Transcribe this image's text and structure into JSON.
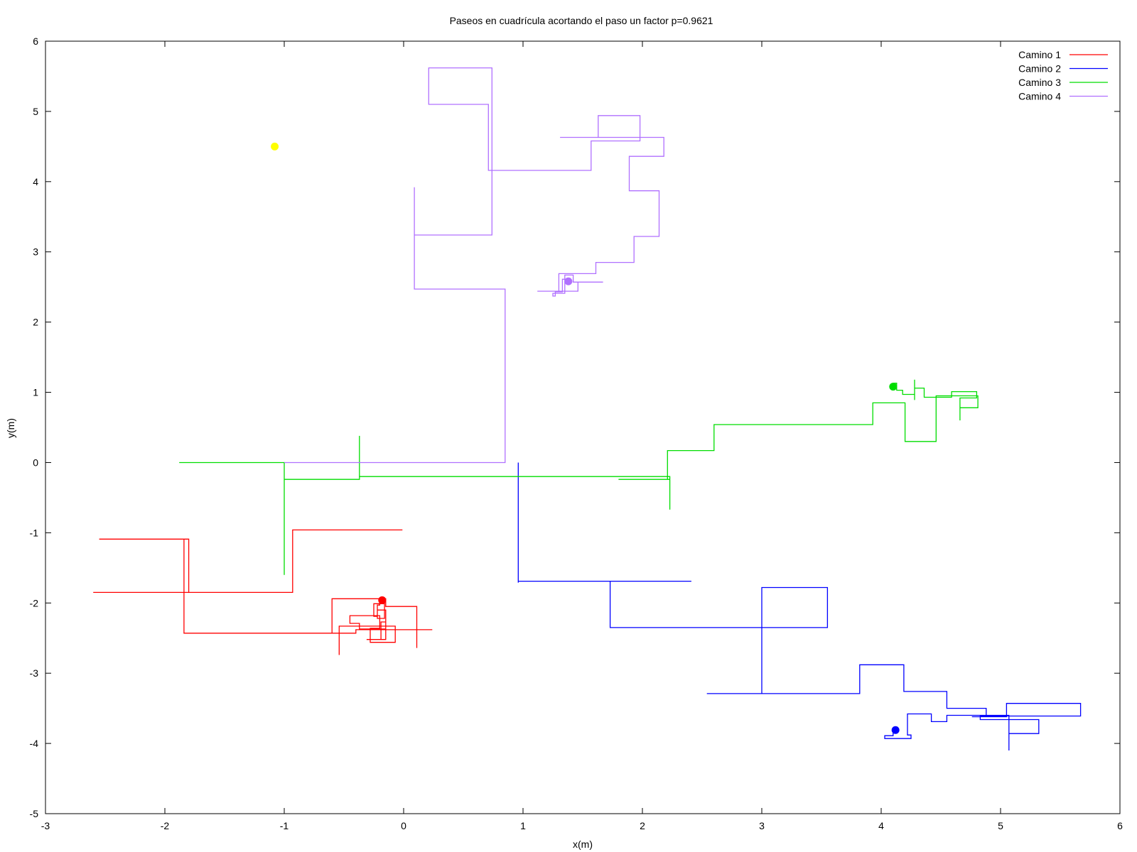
{
  "chart_data": {
    "type": "line",
    "title": "Paseos en cuadrícula acortando el paso un factor p=0.9621",
    "xlabel": "x(m)",
    "ylabel": "y(m)",
    "xlim": [
      -3,
      6
    ],
    "ylim": [
      -5,
      6
    ],
    "xticks": [
      "-3",
      "-2",
      "-1",
      "0",
      "1",
      "2",
      "3",
      "4",
      "5",
      "6"
    ],
    "yticks": [
      "-5",
      "-4",
      "-3",
      "-2",
      "-1",
      "0",
      "1",
      "2",
      "3",
      "4",
      "5",
      "6"
    ],
    "grid": false,
    "legend_position": "top-right",
    "series": [
      {
        "name": "Camino 1",
        "color": "#ff0000",
        "end_point": [
          -0.18,
          -1.96
        ],
        "points": [
          [
            -0.01,
            -0.96
          ],
          [
            -0.93,
            -0.96
          ],
          [
            -0.93,
            -1.85
          ],
          [
            -2.6,
            -1.85
          ],
          [
            -1.8,
            -1.85
          ],
          [
            -1.8,
            -1.09
          ],
          [
            -2.55,
            -1.09
          ],
          [
            -1.84,
            -1.09
          ],
          [
            -1.84,
            -2.43
          ],
          [
            -0.4,
            -2.43
          ],
          [
            -0.4,
            -2.38
          ],
          [
            0.24,
            -2.38
          ],
          [
            0.11,
            -2.38
          ],
          [
            0.11,
            -2.64
          ],
          [
            0.11,
            -2.05
          ],
          [
            -0.15,
            -2.05
          ],
          [
            -0.15,
            -1.94
          ],
          [
            -0.6,
            -1.94
          ],
          [
            -0.6,
            -2.43
          ],
          [
            -0.54,
            -2.43
          ],
          [
            -0.54,
            -2.74
          ],
          [
            -0.54,
            -2.33
          ],
          [
            -0.07,
            -2.33
          ],
          [
            -0.07,
            -2.56
          ],
          [
            -0.28,
            -2.56
          ],
          [
            -0.28,
            -2.36
          ],
          [
            -0.2,
            -2.36
          ],
          [
            -0.2,
            -2.18
          ],
          [
            -0.45,
            -2.18
          ],
          [
            -0.45,
            -2.29
          ],
          [
            -0.37,
            -2.29
          ],
          [
            -0.37,
            -2.37
          ],
          [
            -0.15,
            -2.37
          ],
          [
            -0.15,
            -2.27
          ],
          [
            -0.19,
            -2.27
          ],
          [
            -0.19,
            -2.52
          ],
          [
            -0.31,
            -2.52
          ],
          [
            -0.15,
            -2.52
          ],
          [
            -0.15,
            -2.1
          ],
          [
            -0.22,
            -2.1
          ],
          [
            -0.22,
            -2.19
          ],
          [
            -0.25,
            -2.19
          ],
          [
            -0.25,
            -2.01
          ],
          [
            -0.16,
            -2.01
          ],
          [
            -0.16,
            -1.92
          ],
          [
            -0.16,
            -2.22
          ],
          [
            -0.22,
            -2.22
          ],
          [
            -0.22,
            -2.03
          ],
          [
            -0.2,
            -2.03
          ],
          [
            -0.2,
            -2.0
          ],
          [
            -0.18,
            -2.0
          ],
          [
            -0.18,
            -1.96
          ]
        ]
      },
      {
        "name": "Camino 2",
        "color": "#0000ff",
        "end_point": [
          4.12,
          -3.81
        ],
        "points": [
          [
            0.96,
            0.0
          ],
          [
            0.96,
            -1.71
          ],
          [
            0.96,
            -1.69
          ],
          [
            2.41,
            -1.69
          ],
          [
            1.73,
            -1.69
          ],
          [
            1.73,
            -2.35
          ],
          [
            3.55,
            -2.35
          ],
          [
            3.55,
            -1.78
          ],
          [
            3.0,
            -1.78
          ],
          [
            3.0,
            -3.29
          ],
          [
            2.54,
            -3.29
          ],
          [
            3.82,
            -3.29
          ],
          [
            3.82,
            -2.88
          ],
          [
            4.19,
            -2.88
          ],
          [
            4.19,
            -3.26
          ],
          [
            4.55,
            -3.26
          ],
          [
            4.55,
            -3.5
          ],
          [
            4.88,
            -3.5
          ],
          [
            4.88,
            -3.62
          ],
          [
            4.76,
            -3.62
          ],
          [
            5.05,
            -3.62
          ],
          [
            5.05,
            -3.43
          ],
          [
            5.67,
            -3.43
          ],
          [
            5.67,
            -3.61
          ],
          [
            4.83,
            -3.61
          ],
          [
            4.83,
            -3.66
          ],
          [
            5.32,
            -3.66
          ],
          [
            5.32,
            -3.86
          ],
          [
            5.07,
            -3.86
          ],
          [
            5.07,
            -4.1
          ],
          [
            5.07,
            -3.6
          ],
          [
            4.55,
            -3.6
          ],
          [
            4.55,
            -3.69
          ],
          [
            4.42,
            -3.69
          ],
          [
            4.42,
            -3.58
          ],
          [
            4.22,
            -3.58
          ],
          [
            4.22,
            -3.88
          ],
          [
            4.25,
            -3.88
          ],
          [
            4.25,
            -3.93
          ],
          [
            4.03,
            -3.93
          ],
          [
            4.03,
            -3.89
          ],
          [
            4.1,
            -3.89
          ],
          [
            4.1,
            -3.8
          ],
          [
            4.12,
            -3.8
          ],
          [
            4.12,
            -3.81
          ]
        ]
      },
      {
        "name": "Camino 3",
        "color": "#00dd00",
        "end_point": [
          4.1,
          1.08
        ],
        "points": [
          [
            -1.88,
            0.0
          ],
          [
            -1.0,
            0.0
          ],
          [
            -1.0,
            -1.6
          ],
          [
            -1.0,
            -0.24
          ],
          [
            -0.37,
            -0.24
          ],
          [
            -0.37,
            0.38
          ],
          [
            -0.37,
            -0.2
          ],
          [
            2.19,
            -0.2
          ],
          [
            2.23,
            -0.2
          ],
          [
            2.23,
            -0.67
          ],
          [
            2.23,
            -0.24
          ],
          [
            1.8,
            -0.24
          ],
          [
            2.21,
            -0.24
          ],
          [
            2.21,
            0.17
          ],
          [
            2.6,
            0.17
          ],
          [
            2.6,
            0.54
          ],
          [
            3.93,
            0.54
          ],
          [
            3.93,
            0.85
          ],
          [
            4.2,
            0.85
          ],
          [
            4.2,
            0.3
          ],
          [
            4.46,
            0.3
          ],
          [
            4.46,
            0.95
          ],
          [
            4.81,
            0.95
          ],
          [
            4.81,
            0.78
          ],
          [
            4.66,
            0.78
          ],
          [
            4.66,
            0.6
          ],
          [
            4.66,
            0.92
          ],
          [
            4.8,
            0.92
          ],
          [
            4.8,
            1.01
          ],
          [
            4.59,
            1.01
          ],
          [
            4.59,
            0.93
          ],
          [
            4.36,
            0.93
          ],
          [
            4.36,
            1.06
          ],
          [
            4.28,
            1.06
          ],
          [
            4.28,
            1.18
          ],
          [
            4.28,
            0.89
          ],
          [
            4.28,
            0.97
          ],
          [
            4.18,
            0.97
          ],
          [
            4.18,
            1.03
          ],
          [
            4.13,
            1.03
          ],
          [
            4.13,
            1.13
          ],
          [
            4.1,
            1.13
          ],
          [
            4.1,
            1.08
          ]
        ]
      },
      {
        "name": "Camino 4",
        "color": "#b070ff",
        "end_point": [
          1.38,
          2.58
        ],
        "points": [
          [
            -1.0,
            0.0
          ],
          [
            0.85,
            0.0
          ],
          [
            0.85,
            2.47
          ],
          [
            0.09,
            2.47
          ],
          [
            0.09,
            3.22
          ],
          [
            0.09,
            3.92
          ],
          [
            0.09,
            3.24
          ],
          [
            0.74,
            3.24
          ],
          [
            0.74,
            5.62
          ],
          [
            0.21,
            5.62
          ],
          [
            0.21,
            5.1
          ],
          [
            0.71,
            5.1
          ],
          [
            0.71,
            4.16
          ],
          [
            1.57,
            4.16
          ],
          [
            1.57,
            4.58
          ],
          [
            1.98,
            4.58
          ],
          [
            1.98,
            4.94
          ],
          [
            1.63,
            4.94
          ],
          [
            1.63,
            4.63
          ],
          [
            1.31,
            4.63
          ],
          [
            2.18,
            4.63
          ],
          [
            2.18,
            4.36
          ],
          [
            1.89,
            4.36
          ],
          [
            1.89,
            3.87
          ],
          [
            2.14,
            3.87
          ],
          [
            2.14,
            3.22
          ],
          [
            1.93,
            3.22
          ],
          [
            1.93,
            2.85
          ],
          [
            1.61,
            2.85
          ],
          [
            1.61,
            2.69
          ],
          [
            1.3,
            2.69
          ],
          [
            1.3,
            2.44
          ],
          [
            1.12,
            2.44
          ],
          [
            1.46,
            2.44
          ],
          [
            1.46,
            2.57
          ],
          [
            1.67,
            2.57
          ],
          [
            1.42,
            2.57
          ],
          [
            1.42,
            2.67
          ],
          [
            1.35,
            2.67
          ],
          [
            1.35,
            2.41
          ],
          [
            1.25,
            2.41
          ],
          [
            1.25,
            2.37
          ],
          [
            1.27,
            2.37
          ],
          [
            1.27,
            2.43
          ],
          [
            1.33,
            2.43
          ],
          [
            1.33,
            2.61
          ],
          [
            1.38,
            2.61
          ],
          [
            1.38,
            2.58
          ]
        ]
      }
    ],
    "extra_points": [
      {
        "x": -1.08,
        "y": 4.5,
        "color": "#ffff00"
      }
    ]
  }
}
